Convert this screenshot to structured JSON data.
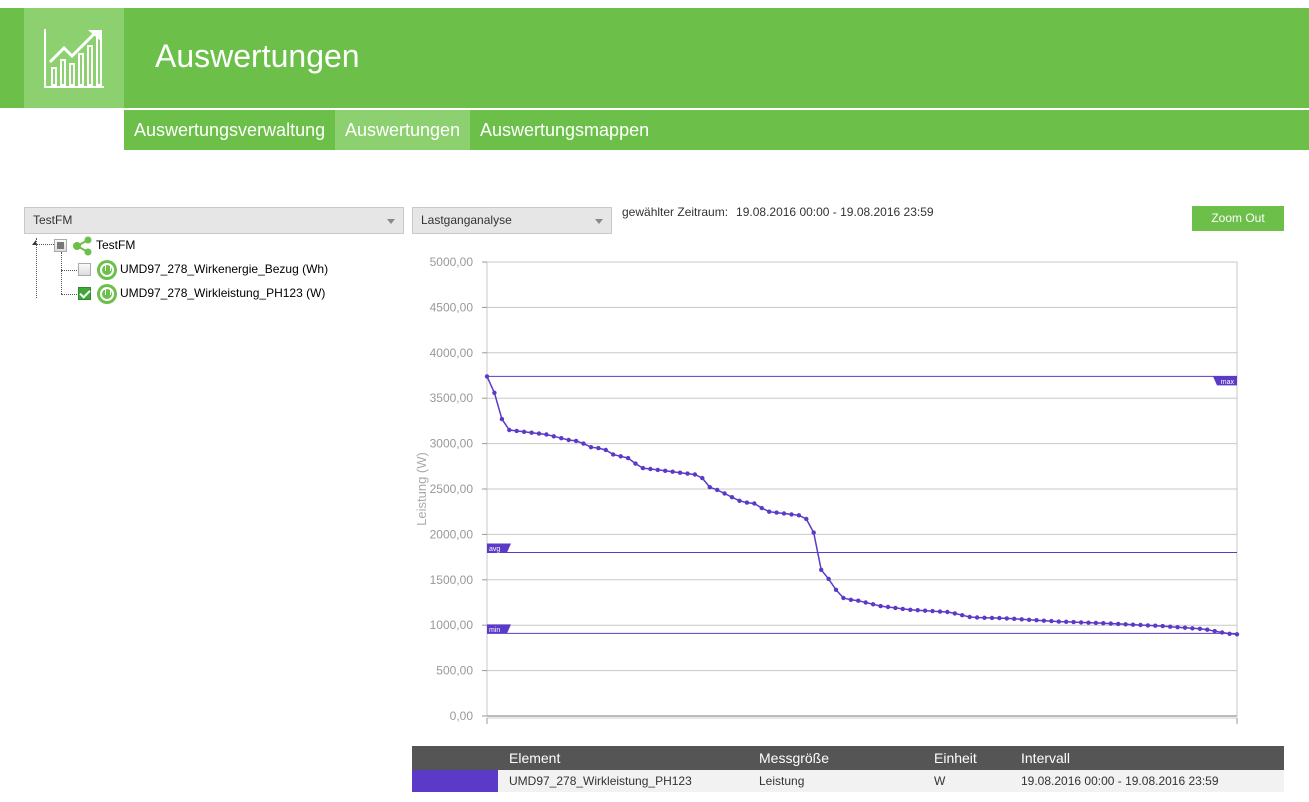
{
  "header": {
    "title": "Auswertungen",
    "logo_icon": "chart-growth-icon"
  },
  "nav": {
    "items": [
      {
        "label": "Auswertungsverwaltung",
        "active": false
      },
      {
        "label": "Auswertungen",
        "active": true
      },
      {
        "label": "Auswertungsmappen",
        "active": false
      }
    ]
  },
  "controls": {
    "facility_select": "TestFM",
    "analysis_select": "Lastganganalyse",
    "period_label": "gewählter Zeitraum:",
    "period_value": "19.08.2016 00:00 - 19.08.2016 23:59",
    "zoom_out": "Zoom Out"
  },
  "tree": {
    "root": {
      "label": "TestFM",
      "checkbox": "partial",
      "icon": "share-network-icon"
    },
    "children": [
      {
        "label": "UMD97_278_Wirkenergie_Bezug (Wh)",
        "checked": false,
        "icon": "plug-icon"
      },
      {
        "label": "UMD97_278_Wirkleistung_PH123 (W)",
        "checked": true,
        "icon": "plug-icon"
      }
    ]
  },
  "colors": {
    "accent_green": "#6cc04a",
    "series": "#5b3ac8"
  },
  "chart_data": {
    "type": "line",
    "title": "",
    "xlabel": "",
    "ylabel": "Leistung (W)",
    "ylim": [
      0,
      5000
    ],
    "yticks": [
      "0,00",
      "500,00",
      "1000,00",
      "1500,00",
      "2000,00",
      "2500,00",
      "3000,00",
      "3500,00",
      "4000,00",
      "4500,00",
      "5000,00"
    ],
    "grid": true,
    "reference_lines": [
      {
        "label": "max",
        "value": 3740
      },
      {
        "label": "avg",
        "value": 1800
      },
      {
        "label": "min",
        "value": 910
      }
    ],
    "series": [
      {
        "values": [
          3740,
          3560,
          3270,
          3150,
          3140,
          3130,
          3120,
          3110,
          3100,
          3080,
          3060,
          3040,
          3030,
          3000,
          2960,
          2950,
          2930,
          2880,
          2860,
          2840,
          2780,
          2730,
          2720,
          2710,
          2700,
          2690,
          2680,
          2670,
          2660,
          2620,
          2520,
          2490,
          2450,
          2410,
          2370,
          2350,
          2340,
          2290,
          2250,
          2240,
          2230,
          2220,
          2210,
          2170,
          2020,
          1610,
          1510,
          1390,
          1300,
          1280,
          1270,
          1250,
          1230,
          1210,
          1200,
          1190,
          1180,
          1170,
          1165,
          1160,
          1155,
          1150,
          1145,
          1130,
          1110,
          1090,
          1085,
          1082,
          1080,
          1078,
          1075,
          1070,
          1065,
          1060,
          1055,
          1050,
          1045,
          1040,
          1037,
          1034,
          1031,
          1028,
          1025,
          1022,
          1018,
          1014,
          1010,
          1006,
          1002,
          998,
          994,
          990,
          984,
          978,
          972,
          966,
          960,
          950,
          935,
          920,
          905,
          900
        ]
      }
    ]
  },
  "legend_table": {
    "headers": [
      "Element",
      "Messgröße",
      "Einheit",
      "Intervall"
    ],
    "rows": [
      {
        "element": "UMD97_278_Wirkleistung_PH123",
        "messgroesse": "Leistung",
        "einheit": "W",
        "intervall": "19.08.2016 00:00 - 19.08.2016 23:59"
      }
    ]
  }
}
